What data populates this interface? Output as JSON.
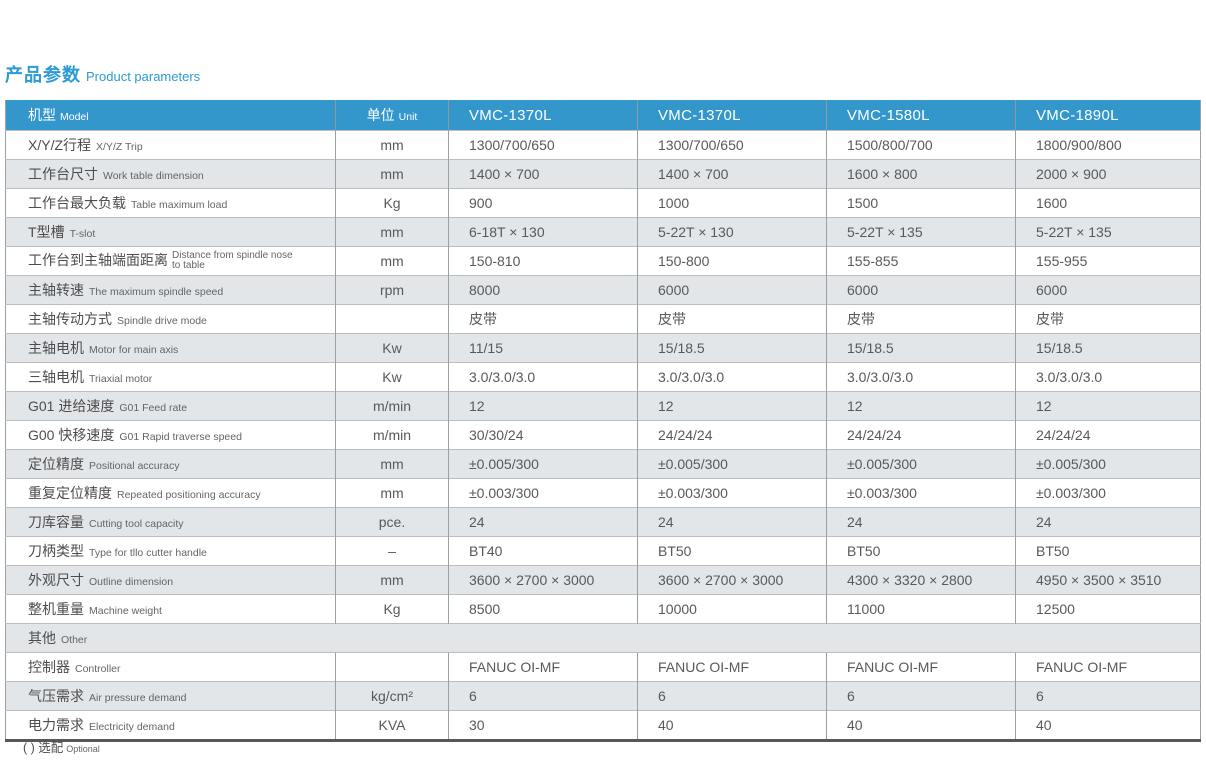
{
  "page": {
    "title_zh": "产品参数",
    "title_en": "Product parameters",
    "footnote_zh": "( ) 选配",
    "footnote_en": "Optional"
  },
  "colors": {
    "accent_blue": "#2d9ad3",
    "header_bg": "#3397cc",
    "row_alt_gray": "#e2e6e8",
    "text_dark": "#58595b"
  },
  "table": {
    "header": {
      "model_zh": "机型",
      "model_en": "Model",
      "unit_zh": "单位",
      "unit_en": "Unit",
      "models": [
        "VMC-1370L",
        "VMC-1370L",
        "VMC-1580L",
        "VMC-1890L"
      ]
    },
    "rows": [
      {
        "zh": "X/Y/Z行程",
        "en": "X/Y/Z Trip",
        "unit": "mm",
        "values": [
          "1300/700/650",
          "1300/700/650",
          "1500/800/700",
          "1800/900/800"
        ]
      },
      {
        "zh": "工作台尺寸",
        "en": "Work table dimension",
        "unit": "mm",
        "values": [
          "1400 × 700",
          "1400 × 700",
          "1600 × 800",
          "2000 × 900"
        ]
      },
      {
        "zh": "工作台最大负载",
        "en": "Table maximum load",
        "unit": "Kg",
        "values": [
          "900",
          "1000",
          "1500",
          "1600"
        ]
      },
      {
        "zh": "T型槽",
        "en": "T-slot",
        "unit": "mm",
        "values": [
          "6-18T × 130",
          "5-22T × 130",
          "5-22T × 135",
          "5-22T × 135"
        ]
      },
      {
        "zh": "工作台到主轴端面距离",
        "en": "Distance from spindle nose to table",
        "en_wrap": true,
        "unit": "mm",
        "values": [
          "150-810",
          "150-800",
          "155-855",
          "155-955"
        ]
      },
      {
        "zh": "主轴转速",
        "en": "The maximum spindle speed",
        "unit": "rpm",
        "values": [
          "8000",
          "6000",
          "6000",
          "6000"
        ]
      },
      {
        "zh": "主轴传动方式",
        "en": "Spindle drive mode",
        "unit": "",
        "values": [
          "皮带",
          "皮带",
          "皮带",
          "皮带"
        ]
      },
      {
        "zh": "主轴电机",
        "en": "Motor for main axis",
        "unit": "Kw",
        "values": [
          "11/15",
          "15/18.5",
          "15/18.5",
          "15/18.5"
        ]
      },
      {
        "zh": "三轴电机",
        "en": "Triaxial motor",
        "unit": "Kw",
        "values": [
          "3.0/3.0/3.0",
          "3.0/3.0/3.0",
          "3.0/3.0/3.0",
          "3.0/3.0/3.0"
        ]
      },
      {
        "zh": "G01 进给速度",
        "en": "G01 Feed rate",
        "unit": "m/min",
        "values": [
          "12",
          "12",
          "12",
          "12"
        ]
      },
      {
        "zh": "G00 快移速度",
        "en": "G01 Rapid traverse speed",
        "unit": "m/min",
        "values": [
          "30/30/24",
          "24/24/24",
          "24/24/24",
          "24/24/24"
        ]
      },
      {
        "zh": "定位精度",
        "en": "Positional accuracy",
        "unit": "mm",
        "values": [
          "±0.005/300",
          "±0.005/300",
          "±0.005/300",
          "±0.005/300"
        ]
      },
      {
        "zh": "重复定位精度",
        "en": "Repeated positioning accuracy",
        "unit": "mm",
        "values": [
          "±0.003/300",
          "±0.003/300",
          "±0.003/300",
          "±0.003/300"
        ]
      },
      {
        "zh": "刀库容量",
        "en": "Cutting tool capacity",
        "unit": "pce.",
        "values": [
          "24",
          "24",
          "24",
          "24"
        ]
      },
      {
        "zh": "刀柄类型",
        "en": "Type for tllo cutter handle",
        "unit": "–",
        "values": [
          "BT40",
          "BT50",
          "BT50",
          "BT50"
        ]
      },
      {
        "zh": "外观尺寸",
        "en": "Outline dimension",
        "unit": "mm",
        "values": [
          "3600 × 2700 × 3000",
          "3600 × 2700 × 3000",
          "4300 × 3320 × 2800",
          "4950 × 3500 × 3510"
        ]
      },
      {
        "zh": "整机重量",
        "en": "Machine weight",
        "unit": "Kg",
        "values": [
          "8500",
          "10000",
          "11000",
          "12500"
        ]
      },
      {
        "section": true,
        "zh": "其他",
        "en": "Other"
      },
      {
        "zh": "控制器",
        "en": "Controller",
        "unit": "",
        "values": [
          "FANUC OI-MF",
          "FANUC OI-MF",
          "FANUC OI-MF",
          "FANUC OI-MF"
        ]
      },
      {
        "zh": "气压需求",
        "en": "Air pressure demand",
        "unit": "kg/cm²",
        "values": [
          "6",
          "6",
          "6",
          "6"
        ]
      },
      {
        "zh": "电力需求",
        "en": "Electricity demand",
        "unit": "KVA",
        "values": [
          "30",
          "40",
          "40",
          "40"
        ]
      }
    ]
  }
}
